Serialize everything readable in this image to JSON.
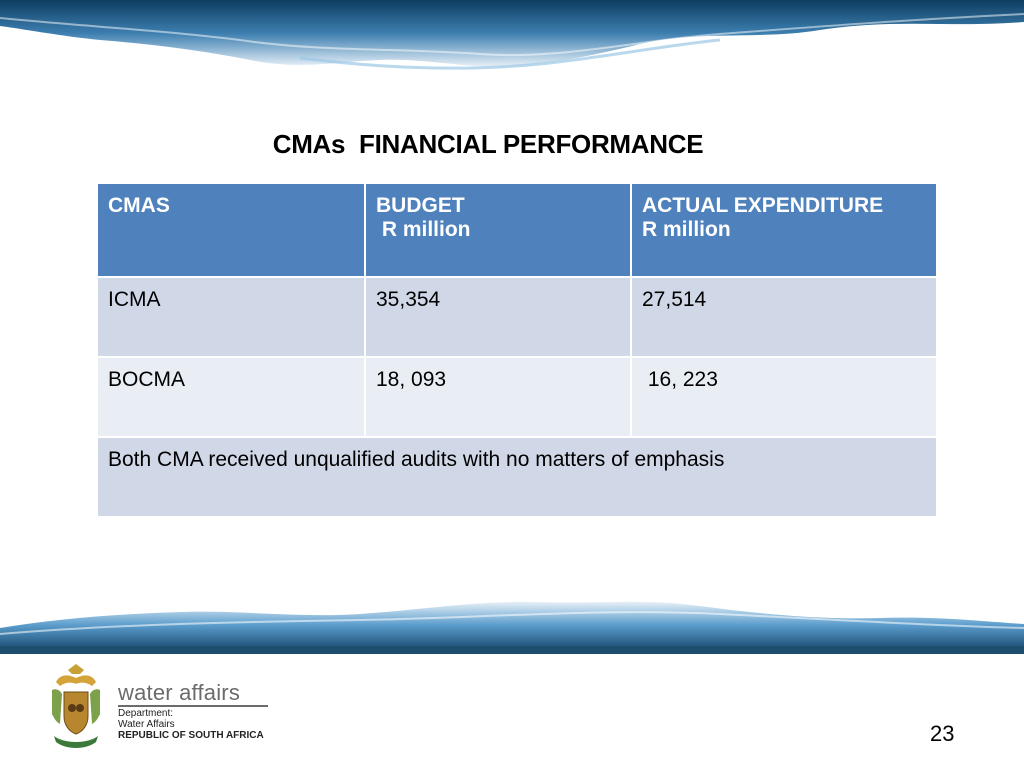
{
  "slide": {
    "title": "CMAs  FINANCIAL PERFORMANCE",
    "page_number": "23"
  },
  "table": {
    "headers": {
      "col1": "CMAS",
      "col2": "BUDGET\n R million",
      "col3": "ACTUAL EXPENDITURE\nR million"
    },
    "rows": [
      {
        "cma": "ICMA",
        "budget": "35,354",
        "actual": "27,514"
      },
      {
        "cma": "BOCMA",
        "budget": "18, 093",
        "actual": " 16, 223"
      }
    ],
    "note": "Both CMA received unqualified audits with no matters of emphasis"
  },
  "footer": {
    "brand": "water affairs",
    "dept_line1": "Department:",
    "dept_line2": "Water Affairs",
    "dept_line3": "REPUBLIC OF SOUTH AFRICA"
  },
  "colors": {
    "header_bg": "#4f81bd",
    "row_odd_bg": "#d0d8e8",
    "row_even_bg": "#e9edf4",
    "water_blue": "#1f5f8b"
  }
}
